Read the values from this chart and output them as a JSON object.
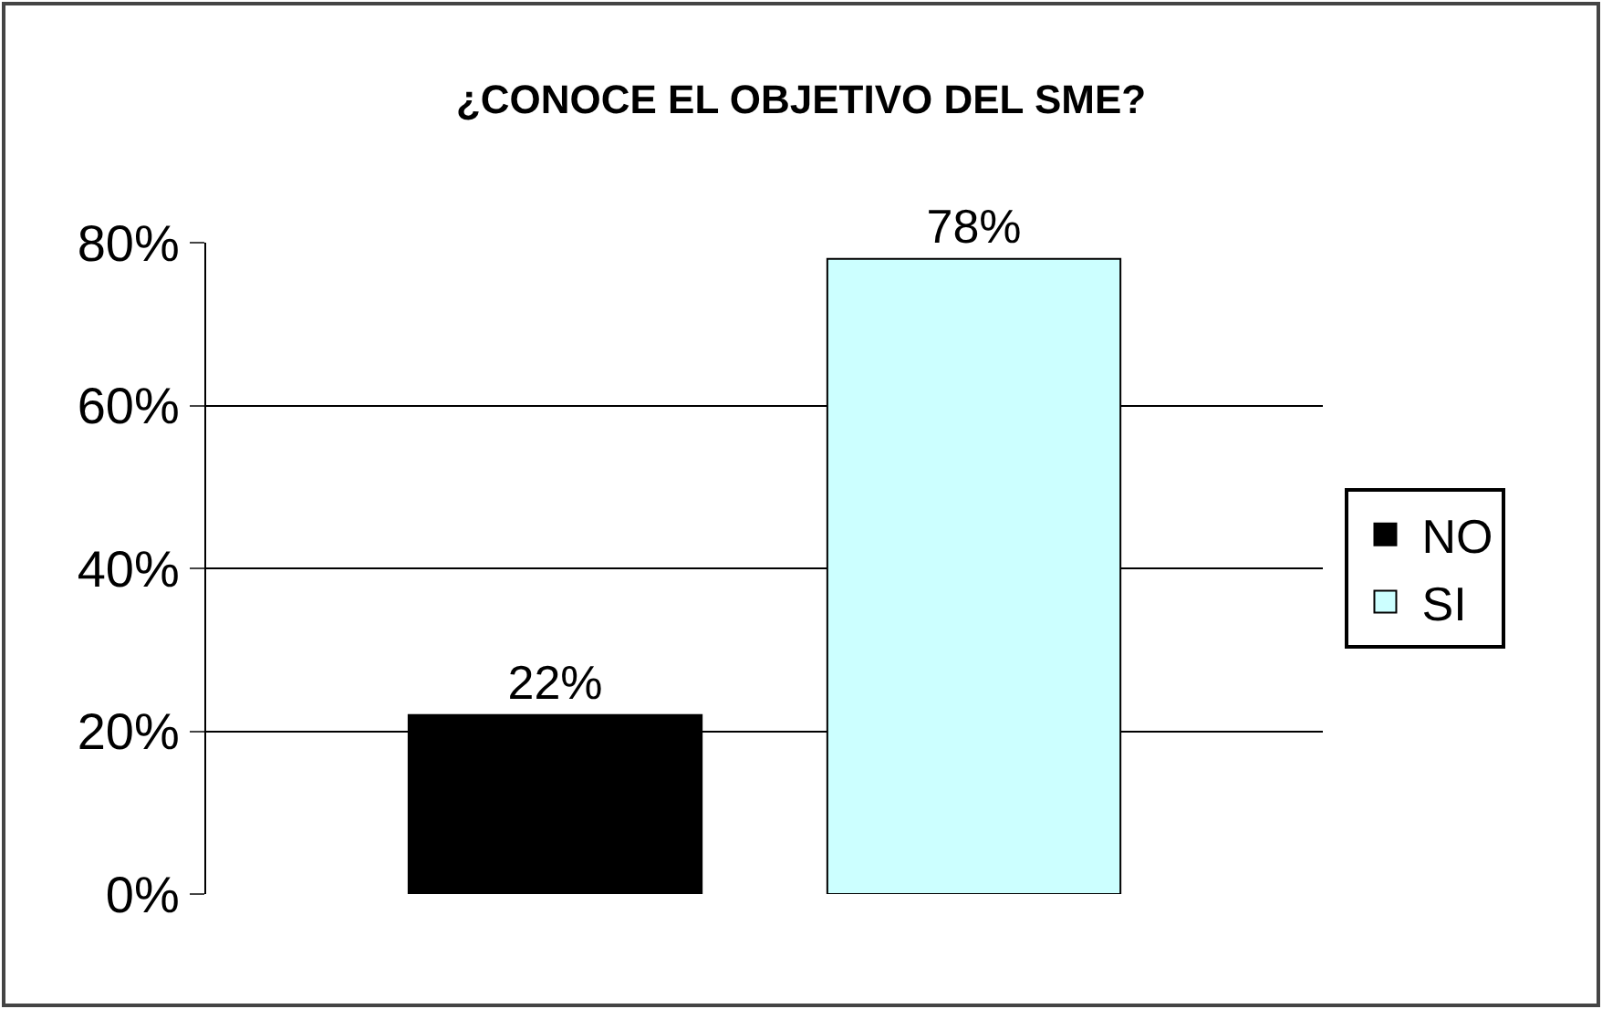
{
  "chart_data": {
    "type": "bar",
    "title": "¿CONOCE EL OBJETIVO DEL SME?",
    "categories": [
      null
    ],
    "series": [
      {
        "name": "NO",
        "color": "#000000",
        "values": [
          22
        ],
        "value_labels": [
          "22%"
        ]
      },
      {
        "name": "SI",
        "color": "#ccffff",
        "values": [
          78
        ],
        "value_labels": [
          "78%"
        ]
      }
    ],
    "ylim": [
      0,
      80
    ],
    "yticks": [
      {
        "value": 0,
        "label": "0%"
      },
      {
        "value": 20,
        "label": "20%"
      },
      {
        "value": 40,
        "label": "40%"
      },
      {
        "value": 60,
        "label": "60%"
      },
      {
        "value": 80,
        "label": "80%"
      }
    ],
    "grid": "y",
    "legend": "right"
  }
}
